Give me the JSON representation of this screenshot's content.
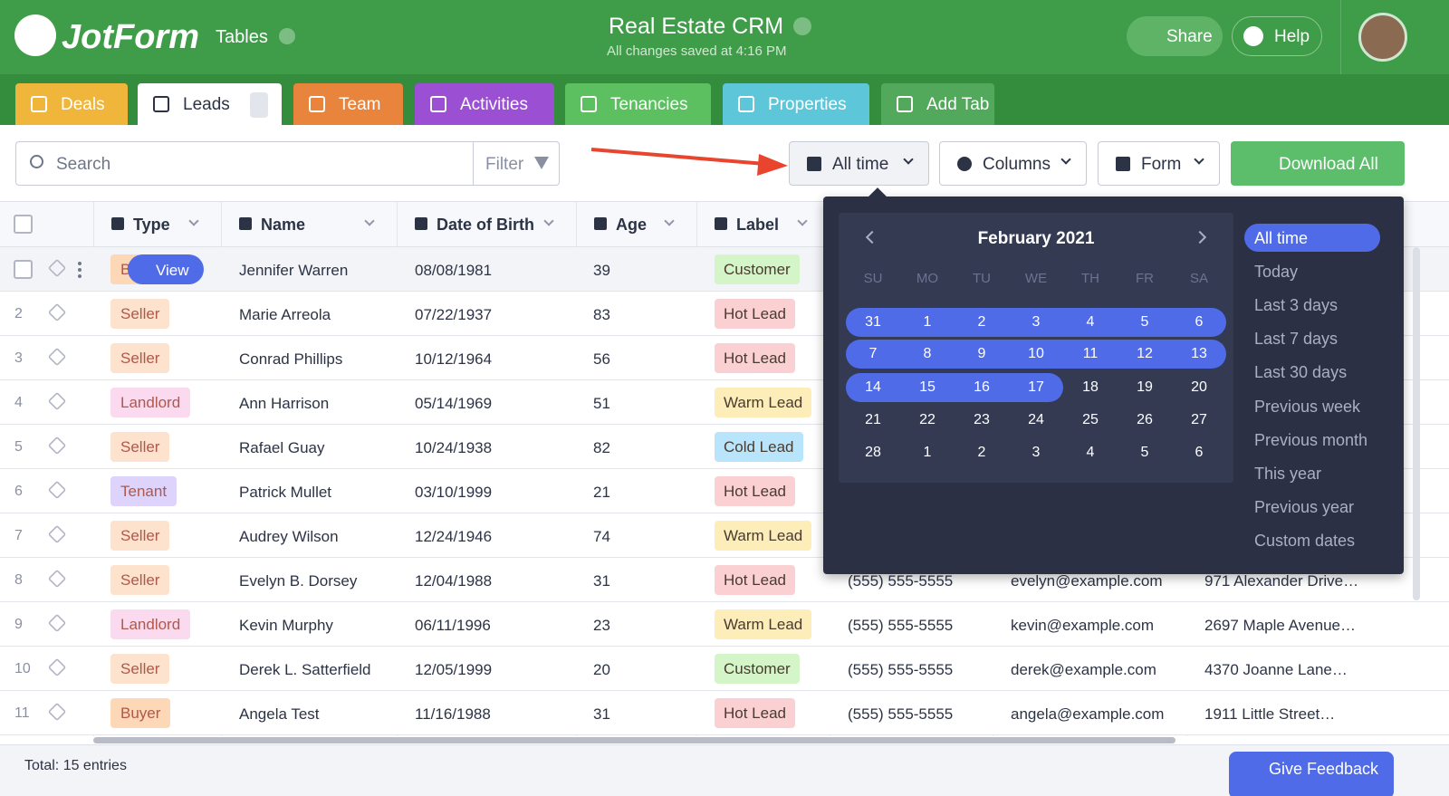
{
  "header": {
    "logo": "JotForm",
    "section": "Tables",
    "title": "Real Estate CRM",
    "status": "All changes saved at 4:16 PM",
    "share": "Share",
    "help": "Help"
  },
  "tabs": [
    {
      "label": "Deals",
      "color": "#efb63b"
    },
    {
      "label": "Leads",
      "color": "#ffffff"
    },
    {
      "label": "Team",
      "color": "#e9843c"
    },
    {
      "label": "Activities",
      "color": "#9b4fd3"
    },
    {
      "label": "Tenancies",
      "color": "#5cc060"
    },
    {
      "label": "Properties",
      "color": "#5ec6d9"
    },
    {
      "label": "Add Tab",
      "color": "#52a95c"
    }
  ],
  "toolbar": {
    "search": "Search",
    "filter": "Filter",
    "date": "All time",
    "columns": "Columns",
    "form": "Form",
    "download": "Download All"
  },
  "table": {
    "columns": [
      "Type",
      "Name",
      "Date of Birth",
      "Age",
      "Label"
    ],
    "pill_colors": {
      "Seller": "#fde2cd",
      "Buyer": "#fcd8b6",
      "Landlord": "#fbd9ef",
      "Tenant": "#ddd3fb",
      "Customer": "#d4f5c7",
      "Hot Lead": "#fbd0d3",
      "Warm Lead": "#fcedb9",
      "Cold Lead": "#b8e5fb"
    },
    "rows": [
      {
        "type": "Buyer",
        "name": "Jennifer Warren",
        "dob": "08/08/1981",
        "age": 39,
        "label": "Customer"
      },
      {
        "number": 2,
        "type": "Seller",
        "name": "Marie Arreola",
        "dob": "07/22/1937",
        "age": 83,
        "label": "Hot Lead"
      },
      {
        "number": 3,
        "type": "Seller",
        "name": "Conrad Phillips",
        "dob": "10/12/1964",
        "age": 56,
        "label": "Hot Lead"
      },
      {
        "number": 4,
        "type": "Landlord",
        "name": "Ann Harrison",
        "dob": "05/14/1969",
        "age": 51,
        "label": "Warm Lead"
      },
      {
        "number": 5,
        "type": "Seller",
        "name": "Rafael Guay",
        "dob": "10/24/1938",
        "age": 82,
        "label": "Cold Lead"
      },
      {
        "number": 6,
        "type": "Tenant",
        "name": "Patrick Mullet",
        "dob": "03/10/1999",
        "age": 21,
        "label": "Hot Lead"
      },
      {
        "number": 7,
        "type": "Seller",
        "name": "Audrey Wilson",
        "dob": "12/24/1946",
        "age": 74,
        "label": "Warm Lead"
      },
      {
        "number": 8,
        "type": "Seller",
        "name": "Evelyn B. Dorsey",
        "dob": "12/04/1988",
        "age": 31,
        "label": "Hot Lead",
        "phone": "(555) 555-5555",
        "email": "evelyn@example.com",
        "address": "971 Alexander Drive…"
      },
      {
        "number": 9,
        "type": "Landlord",
        "name": "Kevin Murphy",
        "dob": "06/11/1996",
        "age": 23,
        "label": "Warm Lead",
        "phone": "(555) 555-5555",
        "email": "kevin@example.com",
        "address": "2697 Maple Avenue…"
      },
      {
        "number": 10,
        "type": "Seller",
        "name": "Derek L. Satterfield",
        "dob": "12/05/1999",
        "age": 20,
        "label": "Customer",
        "phone": "(555) 555-5555",
        "email": "derek@example.com",
        "address": "4370 Joanne Lane…"
      },
      {
        "number": 11,
        "type": "Buyer",
        "name": "Angela Test",
        "dob": "11/16/1988",
        "age": 31,
        "label": "Hot Lead",
        "phone": "(555) 555-5555",
        "email": "angela@example.com",
        "address": "1911 Little Street…"
      }
    ]
  },
  "row_action": "View",
  "date_picker": {
    "month": "February 2021",
    "weekdays": [
      "SU",
      "MO",
      "TU",
      "WE",
      "TH",
      "FR",
      "SA"
    ],
    "weeks": [
      [
        31,
        1,
        2,
        3,
        4,
        5,
        6
      ],
      [
        7,
        8,
        9,
        10,
        11,
        12,
        13
      ],
      [
        14,
        15,
        16,
        17,
        18,
        19,
        20
      ],
      [
        21,
        22,
        23,
        24,
        25,
        26,
        27
      ],
      [
        28,
        1,
        2,
        3,
        4,
        5,
        6
      ]
    ],
    "presets": [
      "All time",
      "Today",
      "Last 3 days",
      "Last 7 days",
      "Last 30 days",
      "Previous week",
      "Previous month",
      "This year",
      "Previous year",
      "Custom dates"
    ]
  },
  "footer": {
    "total": "Total: 15 entries",
    "feedback": "Give Feedback"
  }
}
